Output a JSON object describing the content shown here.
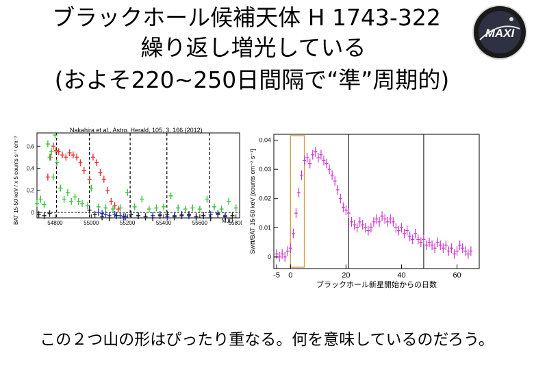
{
  "slide": {
    "title_line1": "ブラックホール候補天体 H 1743-322",
    "title_line2": "繰り返し増光している",
    "title_line3": "(およそ220~250日間隔で“準”周期的)",
    "caption": "この２つ山の形はぴったり重なる。何を意味しているのだろう。",
    "logo_text": "MAXI"
  },
  "chart_data": [
    {
      "type": "scatter",
      "annotation": "Nakahira et al., Astro. Herald, 105, 3, 166 (2012)",
      "ylabel": "BAT 15-50 keV / x 5 counts s⁻¹ cm⁻²",
      "xlabel": "MJD",
      "xlim": [
        54700,
        55820
      ],
      "ylim": [
        -0.05,
        0.72
      ],
      "x_ticks": [
        54800,
        55000,
        55200,
        55400,
        55600,
        55800
      ],
      "y_ticks": [
        0,
        0.2,
        0.4,
        0.6
      ],
      "y_tick_labels": [
        "0",
        "0.2",
        "0.4",
        "0.6"
      ],
      "outburst_markers_mjd": [
        54808,
        54990,
        55215,
        55418,
        55655
      ],
      "colors": {
        "red": "#e8312f",
        "green": "#3cc23c",
        "blue": "#2a3ad8",
        "black": "#222222"
      },
      "series": [
        {
          "color": "red",
          "x": [
            54760,
            54775,
            54790,
            54805,
            54820,
            54840,
            54860,
            54880,
            54900,
            54920,
            54940,
            54960,
            54990,
            55010,
            55030,
            55050,
            55070,
            55090,
            55110,
            55130,
            55150
          ],
          "y": [
            0.32,
            0.5,
            0.6,
            0.56,
            0.55,
            0.52,
            0.5,
            0.54,
            0.52,
            0.5,
            0.45,
            0.38,
            0.3,
            0.5,
            0.45,
            0.36,
            0.3,
            0.2,
            0.1,
            0.06,
            0.03
          ]
        },
        {
          "color": "green",
          "x": [
            54700,
            54720,
            54740,
            54760,
            54770,
            54780,
            54790,
            54800,
            54810,
            54830,
            54850,
            54870,
            54890,
            54910,
            54930,
            54950,
            54980,
            55000,
            55040,
            55080,
            55120,
            55160,
            55200,
            55240,
            55280,
            55320,
            55360,
            55400,
            55440,
            55480,
            55520,
            55560,
            55600,
            55640,
            55680,
            55720,
            55760,
            55800
          ],
          "y": [
            0.08,
            0.12,
            0.07,
            0.62,
            0.5,
            0.55,
            0.32,
            0.7,
            0.45,
            0.22,
            0.12,
            0.18,
            0.1,
            0.14,
            0.1,
            0.08,
            0.06,
            0.22,
            0.05,
            0.04,
            0.03,
            0.04,
            0.18,
            0.05,
            0.12,
            0.03,
            0.04,
            0.05,
            0.15,
            0.04,
            0.03,
            0.04,
            0.03,
            0.12,
            0.05,
            0.03,
            0.1,
            0.04
          ]
        },
        {
          "color": "blue",
          "x": [
            55040,
            55060,
            55080,
            55100,
            55130,
            55160,
            55190,
            55220,
            55260,
            55300,
            55340,
            55380,
            55420,
            55460,
            55500,
            55540,
            55580,
            55620,
            55660,
            55700,
            55740
          ],
          "y": [
            0.0,
            -0.01,
            -0.02,
            -0.03,
            -0.02,
            -0.03,
            -0.04,
            -0.02,
            -0.03,
            -0.04,
            -0.03,
            -0.02,
            -0.04,
            -0.03,
            -0.02,
            -0.03,
            -0.04,
            -0.03,
            -0.02,
            -0.01,
            -0.03
          ]
        },
        {
          "color": "black",
          "x": [
            54710,
            54740,
            54770,
            54990,
            55020,
            55060,
            55100,
            55140,
            55180,
            55220,
            55260,
            55300,
            55340,
            55380,
            55420,
            55460,
            55500,
            55540,
            55580,
            55620,
            55660,
            55700,
            55740,
            55780
          ],
          "y": [
            -0.02,
            -0.03,
            -0.01,
            0.02,
            -0.02,
            -0.04,
            -0.05,
            -0.03,
            -0.04,
            -0.02,
            -0.03,
            -0.04,
            -0.05,
            -0.03,
            -0.02,
            -0.04,
            -0.03,
            -0.02,
            -0.04,
            -0.03,
            -0.05,
            -0.02,
            -0.04,
            -0.03
          ]
        }
      ]
    },
    {
      "type": "scatter",
      "xlabel": "ブラックホール新星開始からの日数",
      "ylabel": "Swift/BAT 15-50 keV [counts cm⁻² s⁻¹]",
      "xlim": [
        -6,
        68
      ],
      "ylim": [
        -0.004,
        0.042
      ],
      "x_ticks": [
        -5,
        0,
        20,
        40,
        60
      ],
      "x_tick_labels": [
        "-5",
        "0",
        "20",
        "40",
        "60"
      ],
      "y_ticks": [
        0,
        0.01,
        0.02,
        0.03,
        0.04
      ],
      "y_tick_labels": [
        "0",
        "0.01",
        "0.02",
        "0.03",
        "0.04"
      ],
      "highlight_box_days": [
        0,
        5
      ],
      "vertical_lines_days": [
        21,
        48
      ],
      "colors": {
        "points": "#cc33cc",
        "box": "#d2a24a"
      },
      "series": [
        {
          "x": [
            -5,
            -4,
            -3,
            -2,
            -1,
            0,
            1,
            2,
            3,
            4,
            5,
            6,
            7,
            8,
            9,
            10,
            11,
            12,
            13,
            14,
            15,
            16,
            17,
            18,
            19,
            20,
            21,
            22,
            23,
            24,
            25,
            26,
            27,
            28,
            29,
            30,
            31,
            32,
            33,
            34,
            35,
            36,
            37,
            38,
            39,
            40,
            41,
            42,
            43,
            44,
            45,
            46,
            47,
            48,
            49,
            50,
            51,
            52,
            53,
            54,
            55,
            56,
            57,
            58,
            59,
            60,
            61,
            62,
            63,
            64,
            65
          ],
          "y": [
            0.001,
            0.0,
            0.001,
            0.0,
            0.002,
            0.003,
            0.008,
            0.015,
            0.022,
            0.028,
            0.033,
            0.034,
            0.032,
            0.035,
            0.036,
            0.034,
            0.035,
            0.033,
            0.032,
            0.03,
            0.028,
            0.026,
            0.023,
            0.02,
            0.017,
            0.016,
            0.015,
            0.012,
            0.011,
            0.01,
            0.012,
            0.011,
            0.01,
            0.009,
            0.01,
            0.012,
            0.013,
            0.012,
            0.014,
            0.013,
            0.012,
            0.013,
            0.012,
            0.01,
            0.009,
            0.01,
            0.008,
            0.009,
            0.007,
            0.006,
            0.008,
            0.006,
            0.005,
            0.006,
            0.004,
            0.005,
            0.004,
            0.003,
            0.005,
            0.004,
            0.003,
            0.004,
            0.002,
            0.003,
            0.001,
            0.002,
            0.004,
            0.003,
            0.002,
            0.001,
            0.002
          ]
        }
      ]
    }
  ]
}
